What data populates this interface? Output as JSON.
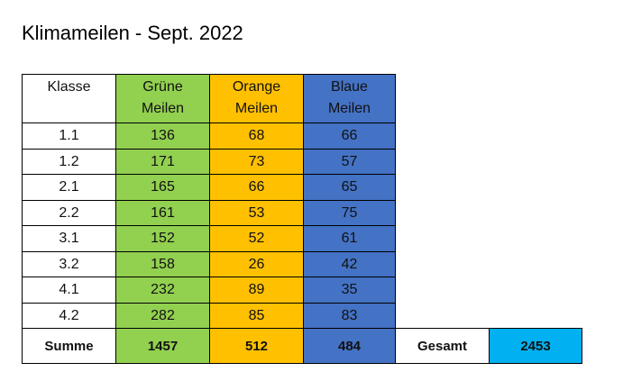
{
  "title": "Klimameilen - Sept. 2022",
  "table": {
    "header": [
      "Klasse",
      "Grüne Meilen",
      "Orange Meilen",
      "Blaue Meilen"
    ],
    "rows": [
      [
        "1.1",
        136,
        68,
        66
      ],
      [
        "1.2",
        171,
        73,
        57
      ],
      [
        "2.1",
        165,
        66,
        65
      ],
      [
        "2.2",
        161,
        53,
        75
      ],
      [
        "3.1",
        152,
        52,
        61
      ],
      [
        "3.2",
        158,
        26,
        42
      ],
      [
        "4.1",
        232,
        89,
        35
      ],
      [
        "4.2",
        282,
        85,
        83
      ]
    ],
    "summary": [
      "Summe",
      1457,
      512,
      484,
      "Gesamt",
      2453
    ]
  }
}
